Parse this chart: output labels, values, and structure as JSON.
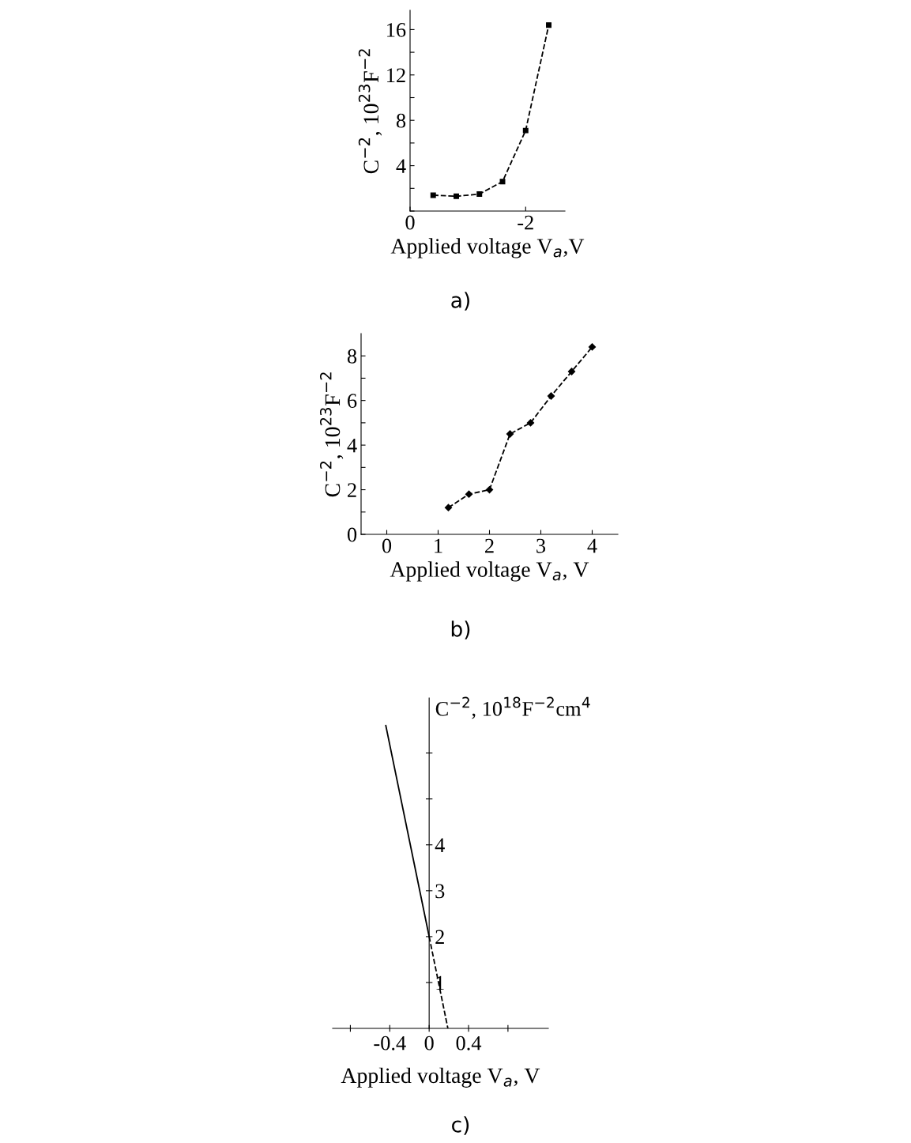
{
  "chart_data": [
    {
      "type": "line",
      "xlabel": "Applied voltage V$_{a}$,V",
      "ylabel": "C$^{−2}$, 10$^{23}$F$^{−2}$",
      "annotations": [
        "a)"
      ],
      "x": [
        -0.4,
        -0.8,
        -1.2,
        -1.6,
        -2.0,
        -2.4
      ],
      "values": [
        1.4,
        1.3,
        1.5,
        2.6,
        7.1,
        16.4
      ],
      "color": "#000000",
      "marker": "square",
      "line_style": "dashed",
      "xlim": [
        0,
        -2.68
      ],
      "ylim": [
        0,
        17.7
      ],
      "xticks": [
        0,
        -2
      ],
      "yticks": [
        {
          "value": 0,
          "label": null
        },
        {
          "value": 2,
          "label": null
        },
        4,
        {
          "value": 6,
          "label": null
        },
        8,
        {
          "value": 10,
          "label": null
        },
        12,
        {
          "value": 14,
          "label": null
        },
        16
      ],
      "grid": false,
      "legend": false
    },
    {
      "type": "line",
      "xlabel": "Applied voltage V$_{a}$, V",
      "ylabel": "C$^{−2}$, 10$^{23}$F$^{−2}$",
      "annotations": [
        "b)"
      ],
      "x": [
        1.2,
        1.6,
        2.0,
        2.4,
        2.8,
        3.2,
        3.6,
        4.0
      ],
      "values": [
        1.2,
        1.8,
        2.0,
        4.5,
        5.0,
        6.2,
        7.3,
        8.4
      ],
      "color": "#000000",
      "marker": "diamond",
      "line_style": "dashed",
      "xlim": [
        -0.5,
        4.5
      ],
      "ylim": [
        0,
        9.0
      ],
      "xticks": [
        0,
        1,
        2,
        3,
        4
      ],
      "yticks": [
        0,
        {
          "value": 1,
          "label": null
        },
        2,
        {
          "value": 3,
          "label": null
        },
        4,
        {
          "value": 5,
          "label": null
        },
        6,
        {
          "value": 7,
          "label": null
        },
        8
      ],
      "grid": false,
      "legend": false
    },
    {
      "type": "line",
      "xlabel": "Applied voltage V$_{a}$, V",
      "ylabel": "C$^{−2}$, 10$^{18}$F$^{−2}$cm$^{4}$",
      "annotations": [
        "c)"
      ],
      "series": [
        {
          "color": "#000000",
          "x": [
            -0.44,
            0
          ],
          "values": [
            6.6,
            2.0
          ],
          "line_style": "solid"
        },
        {
          "color": "#000000",
          "x": [
            0,
            0.19
          ],
          "values": [
            2.0,
            0
          ],
          "line_style": "dashed"
        }
      ],
      "marker": "none",
      "xlim": [
        -0.98,
        1.21
      ],
      "ylim": [
        0,
        7.2
      ],
      "xticks": [
        {
          "value": -0.8,
          "label": null
        },
        -0.4,
        0,
        0.4,
        {
          "value": 0.8,
          "label": null
        }
      ],
      "yticks": [
        1,
        2,
        3,
        4,
        {
          "value": 5,
          "label": null
        },
        {
          "value": 6,
          "label": null
        }
      ],
      "grid": false,
      "legend": false
    }
  ]
}
